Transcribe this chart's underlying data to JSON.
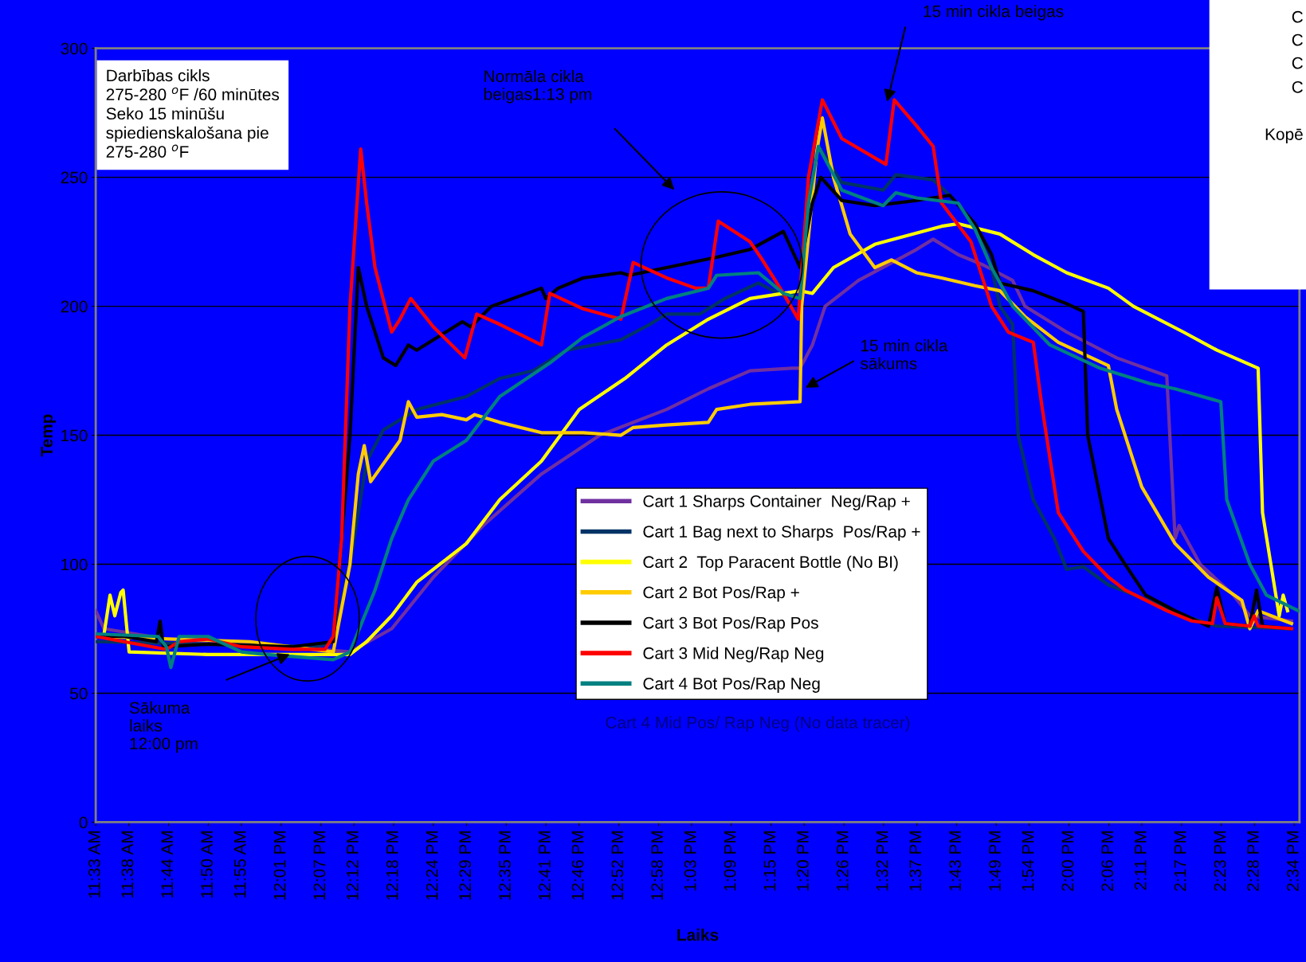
{
  "chart_data": {
    "type": "line",
    "xlabel": "Laiks",
    "ylabel": "Temp",
    "xlim": [
      11.55,
      14.58
    ],
    "ylim": [
      0,
      300
    ],
    "yticks": [
      0,
      50,
      100,
      150,
      200,
      250,
      300
    ],
    "xticks": [
      {
        "value": 11.55,
        "label": "11:33 AM"
      },
      {
        "value": 11.6333,
        "label": "11:38 AM"
      },
      {
        "value": 11.7333,
        "label": "11:44 AM"
      },
      {
        "value": 11.8333,
        "label": "11:50 AM"
      },
      {
        "value": 11.9167,
        "label": "11:55 AM"
      },
      {
        "value": 12.0167,
        "label": "12:01 PM"
      },
      {
        "value": 12.1167,
        "label": "12:07 PM"
      },
      {
        "value": 12.2,
        "label": "12:12 PM"
      },
      {
        "value": 12.3,
        "label": "12:18 PM"
      },
      {
        "value": 12.4,
        "label": "12:24 PM"
      },
      {
        "value": 12.4833,
        "label": "12:29 PM"
      },
      {
        "value": 12.5833,
        "label": "12:35 PM"
      },
      {
        "value": 12.6833,
        "label": "12:41 PM"
      },
      {
        "value": 12.7667,
        "label": "12:46 PM"
      },
      {
        "value": 12.8667,
        "label": "12:52 PM"
      },
      {
        "value": 12.9667,
        "label": "12:58 PM"
      },
      {
        "value": 13.05,
        "label": "1:03 PM"
      },
      {
        "value": 13.15,
        "label": "1:09 PM"
      },
      {
        "value": 13.25,
        "label": "1:15 PM"
      },
      {
        "value": 13.3333,
        "label": "1:20 PM"
      },
      {
        "value": 13.4333,
        "label": "1:26 PM"
      },
      {
        "value": 13.5333,
        "label": "1:32 PM"
      },
      {
        "value": 13.6167,
        "label": "1:37 PM"
      },
      {
        "value": 13.7167,
        "label": "1:43 PM"
      },
      {
        "value": 13.8167,
        "label": "1:49 PM"
      },
      {
        "value": 13.9,
        "label": "1:54 PM"
      },
      {
        "value": 14.0,
        "label": "2:00 PM"
      },
      {
        "value": 14.1,
        "label": "2:06 PM"
      },
      {
        "value": 14.1833,
        "label": "2:11 PM"
      },
      {
        "value": 14.2833,
        "label": "2:17 PM"
      },
      {
        "value": 14.3833,
        "label": "2:23 PM"
      },
      {
        "value": 14.4667,
        "label": "2:28 PM"
      },
      {
        "value": 14.5667,
        "label": "2:34 PM"
      }
    ],
    "grid": "y",
    "legend": "bottom",
    "series": [
      {
        "name": "Cart 1 Sharps Container  Neg/Rap +",
        "color": "#7030a0",
        "x": [
          11.55,
          11.571,
          11.728,
          12.043,
          12.19,
          12.295,
          12.4,
          12.525,
          12.672,
          12.819,
          12.987,
          13.092,
          13.197,
          13.302,
          13.323,
          13.354,
          13.386,
          13.47,
          13.616,
          13.658,
          13.721,
          13.784,
          13.858,
          13.889,
          13.994,
          14.12,
          14.246,
          14.267,
          14.277,
          14.33,
          14.414,
          14.455,
          14.56
        ],
        "values": [
          82,
          75,
          71,
          68,
          66,
          75,
          95,
          115,
          135,
          150,
          160,
          168,
          175,
          176,
          176,
          185,
          200,
          210,
          222,
          226,
          220,
          216,
          210,
          200,
          190,
          180,
          173,
          110,
          115,
          100,
          88,
          80,
          78
        ]
      },
      {
        "name": "Cart 1 Bag next to Sharps  Pos/Rap +",
        "color": "#003366",
        "x": [
          11.55,
          11.833,
          12.106,
          12.148,
          12.19,
          12.232,
          12.274,
          12.358,
          12.483,
          12.567,
          12.651,
          12.735,
          12.872,
          12.945,
          12.987,
          13.071,
          13.134,
          13.218,
          13.281,
          13.323,
          13.344,
          13.369,
          13.428,
          13.532,
          13.564,
          13.658,
          13.7,
          13.763,
          13.805,
          13.826,
          13.858,
          13.872,
          13.91,
          13.963,
          13.994,
          14.036,
          14.099,
          14.183,
          14.288,
          14.372,
          14.56
        ],
        "values": [
          70,
          69,
          68,
          70,
          100,
          140,
          152,
          160,
          165,
          172,
          175,
          183,
          187,
          193,
          197,
          197,
          203,
          209,
          204,
          206,
          240,
          262,
          248,
          245,
          251,
          249,
          243,
          232,
          215,
          200,
          193,
          150,
          125,
          110,
          98,
          99,
          92,
          87,
          80,
          76,
          75
        ]
      },
      {
        "name": "Cart 2  Top Paracent Bottle (No BI)",
        "color": "#ffff00",
        "x": [
          11.571,
          11.586,
          11.598,
          11.613,
          11.619,
          11.634,
          11.833,
          12.19,
          12.232,
          12.295,
          12.358,
          12.483,
          12.567,
          12.672,
          12.767,
          12.882,
          12.987,
          13.092,
          13.197,
          13.323,
          13.354,
          13.407,
          13.511,
          13.679,
          13.721,
          13.826,
          13.91,
          13.994,
          14.099,
          14.162,
          14.288,
          14.372,
          14.476,
          14.487,
          14.508,
          14.529,
          14.539,
          14.55
        ],
        "values": [
          73,
          88,
          80,
          89,
          90,
          66,
          65,
          65,
          70,
          80,
          93,
          108,
          125,
          140,
          160,
          172,
          185,
          195,
          203,
          206,
          205,
          215,
          224,
          231,
          232,
          228,
          220,
          213,
          207,
          200,
          190,
          183,
          176,
          120,
          100,
          80,
          88,
          82
        ]
      },
      {
        "name": "Cart 2 Bot Pos/Rap +",
        "color": "#ffcc00",
        "x": [
          11.55,
          11.938,
          12.148,
          12.19,
          12.211,
          12.226,
          12.242,
          12.316,
          12.337,
          12.358,
          12.421,
          12.483,
          12.504,
          12.567,
          12.672,
          12.777,
          12.872,
          12.903,
          12.987,
          13.092,
          13.113,
          13.197,
          13.323,
          13.327,
          13.365,
          13.379,
          13.407,
          13.449,
          13.511,
          13.553,
          13.616,
          13.679,
          13.763,
          13.826,
          13.889,
          13.973,
          14.099,
          14.12,
          14.183,
          14.267,
          14.351,
          14.435,
          14.455,
          14.476,
          14.56
        ],
        "values": [
          72,
          70,
          66,
          100,
          135,
          146,
          132,
          148,
          163,
          157,
          158,
          156,
          158,
          155,
          151,
          151,
          150,
          153,
          154,
          155,
          160,
          162,
          163,
          200,
          260,
          273,
          250,
          228,
          215,
          218,
          213,
          211,
          208,
          206,
          196,
          186,
          177,
          160,
          130,
          108,
          95,
          86,
          75,
          82,
          77
        ]
      },
      {
        "name": "Cart 3 Bot Pos/Rap Pos",
        "color": "#000000",
        "x": [
          11.55,
          11.623,
          11.703,
          11.712,
          11.72,
          11.833,
          12.043,
          12.148,
          12.19,
          12.211,
          12.232,
          12.274,
          12.305,
          12.337,
          12.358,
          12.473,
          12.494,
          12.546,
          12.672,
          12.683,
          12.714,
          12.777,
          12.872,
          12.893,
          12.987,
          13.113,
          13.197,
          13.281,
          13.323,
          13.354,
          13.375,
          13.428,
          13.511,
          13.616,
          13.7,
          13.763,
          13.805,
          13.826,
          13.91,
          13.994,
          14.036,
          14.047,
          14.099,
          14.141,
          14.193,
          14.267,
          14.351,
          14.372,
          14.393,
          14.455,
          14.472,
          14.487,
          14.56
        ],
        "values": [
          72,
          72,
          70,
          78,
          68,
          69,
          68,
          70,
          150,
          215,
          200,
          180,
          177,
          185,
          183,
          194,
          192,
          200,
          207,
          203,
          207,
          211,
          213,
          212,
          215,
          219,
          222,
          229,
          215,
          240,
          250,
          241,
          239,
          241,
          243,
          232,
          220,
          209,
          206,
          201,
          198,
          150,
          110,
          100,
          88,
          82,
          76,
          91,
          77,
          76,
          90,
          76,
          75
        ]
      },
      {
        "name": "Cart 3 Mid Neg/Rap Neg",
        "color": "#ff0000",
        "x": [
          11.55,
          11.728,
          11.76,
          11.833,
          11.917,
          12.043,
          12.127,
          12.148,
          12.169,
          12.19,
          12.217,
          12.232,
          12.253,
          12.295,
          12.316,
          12.343,
          12.4,
          12.479,
          12.509,
          12.567,
          12.672,
          12.693,
          12.777,
          12.872,
          12.903,
          12.987,
          13.06,
          13.092,
          13.117,
          13.197,
          13.228,
          13.281,
          13.318,
          13.344,
          13.379,
          13.428,
          13.539,
          13.56,
          13.616,
          13.658,
          13.679,
          13.753,
          13.805,
          13.847,
          13.91,
          13.931,
          13.973,
          14.036,
          14.099,
          14.141,
          14.246,
          14.309,
          14.361,
          14.372,
          14.393,
          14.455,
          14.466,
          14.476,
          14.56
        ],
        "values": [
          72,
          67,
          70,
          71,
          68,
          67,
          67,
          72,
          110,
          200,
          261,
          240,
          215,
          190,
          195,
          203,
          192,
          180,
          197,
          193,
          185,
          205,
          199,
          195,
          217,
          211,
          207,
          207,
          233,
          225,
          218,
          205,
          195,
          250,
          280,
          265,
          255,
          280,
          270,
          262,
          240,
          225,
          200,
          190,
          186,
          162,
          120,
          105,
          95,
          90,
          82,
          78,
          77,
          87,
          77,
          76,
          80,
          76,
          75
        ]
      },
      {
        "name": "Cart 4 Bot Pos/Rap Neg",
        "color": "#008080",
        "x": [
          11.55,
          11.707,
          11.728,
          11.739,
          11.76,
          11.833,
          11.917,
          11.98,
          12.148,
          12.19,
          12.253,
          12.295,
          12.337,
          12.4,
          12.483,
          12.567,
          12.693,
          12.777,
          12.872,
          12.987,
          13.092,
          13.113,
          13.218,
          13.281,
          13.323,
          13.344,
          13.369,
          13.428,
          13.532,
          13.564,
          13.616,
          13.721,
          13.763,
          13.805,
          13.858,
          13.952,
          14.078,
          14.204,
          14.267,
          14.382,
          14.397,
          14.455,
          14.497,
          14.577
        ],
        "values": [
          73,
          72,
          68,
          60,
          72,
          72,
          66,
          65,
          63,
          66,
          90,
          110,
          125,
          140,
          148,
          165,
          178,
          188,
          196,
          203,
          207,
          212,
          213,
          205,
          203,
          240,
          262,
          245,
          239,
          244,
          242,
          240,
          230,
          215,
          200,
          185,
          176,
          170,
          168,
          163,
          125,
          100,
          88,
          82
        ]
      }
    ],
    "annotations": [
      "Darbības cikls\n275-280 $^{o}$F /60 minūtes\nSeko 15 minūšu\nspiedienskalošana pie\n275-280 $^{o}$F",
      "Normāla cikla\nbeigas1:13 pm",
      "15 min cikla beigas",
      "15 min cikla\nsākums",
      "Sākuma\nlaiks\n12:00 pm",
      "Cart 4 Mid Pos/ Rap Neg (No data tracer)",
      "C",
      "C",
      "C",
      "C",
      "Kopē"
    ]
  }
}
